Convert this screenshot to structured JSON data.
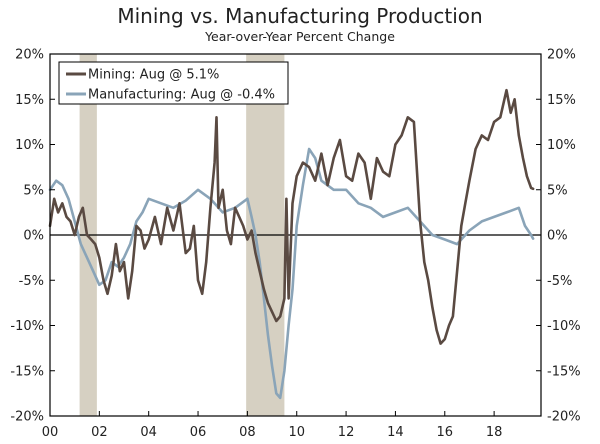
{
  "chart_data": {
    "type": "line",
    "title": "Mining vs. Manufacturing Production",
    "subtitle": "Year-over-Year Percent Change",
    "xlabel": "",
    "ylabel": "",
    "xlim": [
      2000,
      2019.9
    ],
    "ylim": [
      -20,
      20
    ],
    "x_tick_labels": [
      "00",
      "02",
      "04",
      "06",
      "08",
      "10",
      "12",
      "14",
      "16",
      "18"
    ],
    "x_tick_years": [
      2000,
      2002,
      2004,
      2006,
      2008,
      2010,
      2012,
      2014,
      2016,
      2018
    ],
    "y_tick_labels": [
      "20%",
      "15%",
      "10%",
      "5%",
      "0%",
      "-5%",
      "-10%",
      "-15%",
      "-20%"
    ],
    "y_tick_values": [
      20,
      15,
      10,
      5,
      0,
      -5,
      -10,
      -15,
      -20
    ],
    "legend_position": "top-left",
    "recessions": [
      [
        2001.2,
        2001.9
      ],
      [
        2007.95,
        2009.5
      ]
    ],
    "colors": {
      "mining": "#5a4a42",
      "manufacturing": "#8aa4b8",
      "recession": "#d6d0c2"
    },
    "series": [
      {
        "name": "Mining",
        "label": "Mining: Aug @ 5.1%",
        "x": [
          2000.0,
          2000.17,
          2000.33,
          2000.5,
          2000.67,
          2000.83,
          2001.0,
          2001.17,
          2001.33,
          2001.5,
          2001.67,
          2001.83,
          2002.0,
          2002.17,
          2002.33,
          2002.5,
          2002.67,
          2002.83,
          2003.0,
          2003.17,
          2003.33,
          2003.5,
          2003.67,
          2003.83,
          2004.0,
          2004.25,
          2004.5,
          2004.75,
          2005.0,
          2005.25,
          2005.5,
          2005.67,
          2005.83,
          2006.0,
          2006.17,
          2006.33,
          2006.5,
          2006.67,
          2006.75,
          2006.83,
          2007.0,
          2007.17,
          2007.33,
          2007.5,
          2007.67,
          2007.83,
          2008.0,
          2008.17,
          2008.33,
          2008.5,
          2008.67,
          2008.83,
          2009.0,
          2009.17,
          2009.33,
          2009.5,
          2009.58,
          2009.67,
          2009.83,
          2010.0,
          2010.25,
          2010.5,
          2010.75,
          2011.0,
          2011.25,
          2011.5,
          2011.75,
          2012.0,
          2012.25,
          2012.5,
          2012.75,
          2013.0,
          2013.25,
          2013.5,
          2013.75,
          2014.0,
          2014.25,
          2014.5,
          2014.75,
          2015.0,
          2015.17,
          2015.33,
          2015.5,
          2015.67,
          2015.83,
          2016.0,
          2016.17,
          2016.33,
          2016.5,
          2016.67,
          2016.83,
          2017.0,
          2017.25,
          2017.5,
          2017.75,
          2018.0,
          2018.25,
          2018.5,
          2018.67,
          2018.83,
          2019.0,
          2019.17,
          2019.33,
          2019.5,
          2019.58
        ],
        "values": [
          1.0,
          4.0,
          2.5,
          3.5,
          2.0,
          1.5,
          0.0,
          2.0,
          3.0,
          0.0,
          -0.5,
          -1.0,
          -2.5,
          -5.0,
          -6.5,
          -4.5,
          -1.0,
          -4.0,
          -3.0,
          -7.0,
          -4.0,
          1.0,
          0.5,
          -1.5,
          -0.5,
          2.0,
          -1.0,
          3.0,
          0.5,
          3.5,
          -2.0,
          -1.5,
          1.0,
          -5.0,
          -6.5,
          -3.0,
          3.0,
          8.0,
          13.0,
          3.0,
          5.0,
          0.5,
          -1.0,
          3.0,
          2.0,
          1.0,
          -0.5,
          0.5,
          -2.0,
          -4.0,
          -6.0,
          -7.5,
          -8.5,
          -9.5,
          -9.0,
          -7.0,
          4.0,
          -7.0,
          3.5,
          6.5,
          8.0,
          7.5,
          6.0,
          9.0,
          5.5,
          8.5,
          10.5,
          6.5,
          6.0,
          9.0,
          8.0,
          4.0,
          8.5,
          7.0,
          6.5,
          10.0,
          11.0,
          13.0,
          12.5,
          1.5,
          -3.0,
          -5.0,
          -8.0,
          -10.5,
          -12.0,
          -11.5,
          -10.0,
          -9.0,
          -4.0,
          1.0,
          3.5,
          6.0,
          9.5,
          11.0,
          10.5,
          12.5,
          13.0,
          16.0,
          13.5,
          15.0,
          11.0,
          8.5,
          6.5,
          5.2,
          5.1
        ]
      },
      {
        "name": "Manufacturing",
        "label": "Manufacturing: Aug @ -0.4%",
        "x": [
          2000.0,
          2000.25,
          2000.5,
          2000.75,
          2001.0,
          2001.25,
          2001.5,
          2001.75,
          2002.0,
          2002.25,
          2002.5,
          2002.75,
          2003.0,
          2003.25,
          2003.5,
          2003.75,
          2004.0,
          2004.5,
          2005.0,
          2005.5,
          2006.0,
          2006.5,
          2007.0,
          2007.5,
          2008.0,
          2008.17,
          2008.33,
          2008.5,
          2008.67,
          2008.83,
          2009.0,
          2009.17,
          2009.33,
          2009.5,
          2009.67,
          2009.83,
          2010.0,
          2010.25,
          2010.5,
          2010.75,
          2011.0,
          2011.5,
          2012.0,
          2012.5,
          2013.0,
          2013.5,
          2014.0,
          2014.5,
          2015.0,
          2015.5,
          2016.0,
          2016.5,
          2017.0,
          2017.5,
          2018.0,
          2018.5,
          2019.0,
          2019.25,
          2019.5,
          2019.58
        ],
        "values": [
          5.0,
          6.0,
          5.5,
          4.0,
          1.5,
          -1.0,
          -2.5,
          -4.0,
          -5.5,
          -5.0,
          -3.0,
          -3.5,
          -2.5,
          -1.0,
          1.5,
          2.5,
          4.0,
          3.5,
          3.0,
          3.8,
          5.0,
          4.0,
          2.5,
          3.0,
          4.0,
          2.0,
          0.0,
          -3.0,
          -7.0,
          -11.0,
          -14.5,
          -17.5,
          -18.0,
          -15.0,
          -10.0,
          -6.0,
          1.0,
          5.5,
          9.5,
          8.5,
          6.0,
          5.0,
          5.0,
          3.5,
          3.0,
          2.0,
          2.5,
          3.0,
          1.5,
          0.0,
          -0.5,
          -1.0,
          0.5,
          1.5,
          2.0,
          2.5,
          3.0,
          1.0,
          0.0,
          -0.4
        ]
      }
    ]
  }
}
